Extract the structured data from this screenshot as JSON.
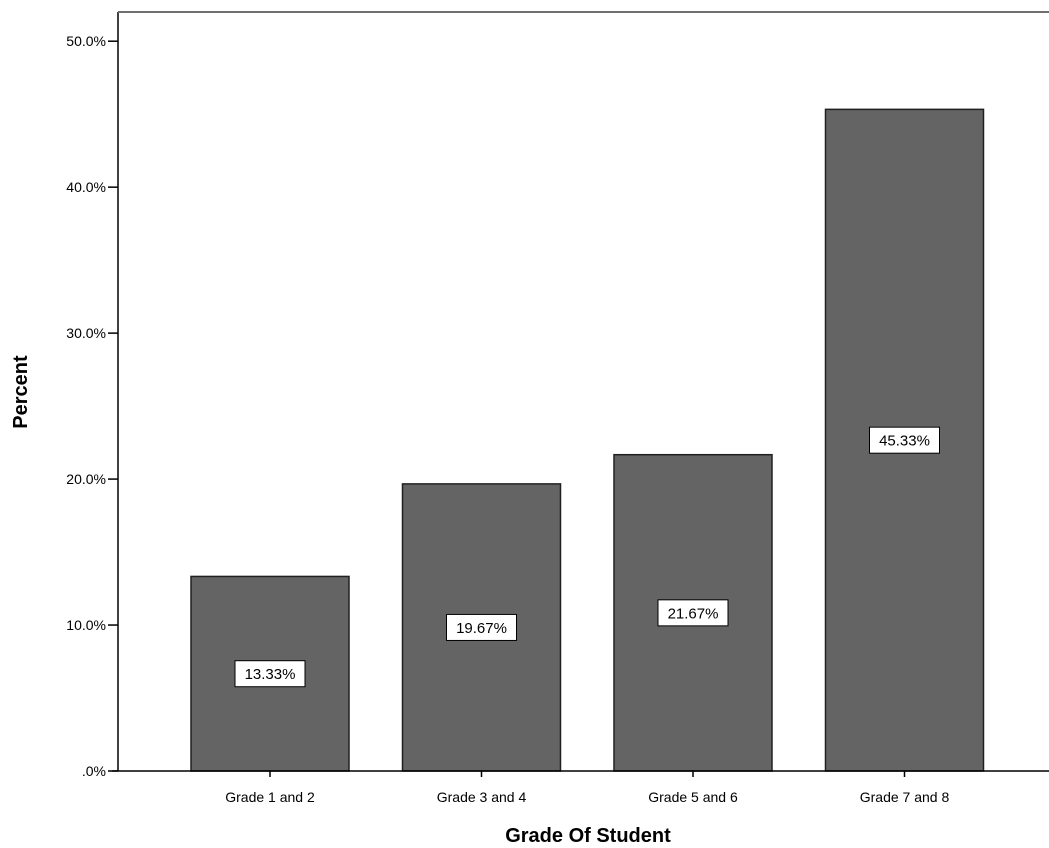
{
  "chart_data": {
    "type": "bar",
    "title": "",
    "xlabel": "Grade Of Student",
    "ylabel": "Percent",
    "categories": [
      "Grade 1 and 2",
      "Grade 3 and 4",
      "Grade 5 and 6",
      "Grade 7 and 8"
    ],
    "values": [
      13.33,
      19.67,
      21.67,
      45.33
    ],
    "data_labels": [
      "13.33%",
      "19.67%",
      "21.67%",
      "45.33%"
    ],
    "ylim": [
      0,
      52
    ],
    "yticks": [
      0,
      10,
      20,
      30,
      40,
      50
    ],
    "ytick_labels": [
      ".0%",
      "10.0%",
      "20.0%",
      "30.0%",
      "40.0%",
      "50.0%"
    ],
    "grid": false,
    "legend": "none",
    "bar_color": "#646464",
    "bar_edge_color": "#202020"
  }
}
